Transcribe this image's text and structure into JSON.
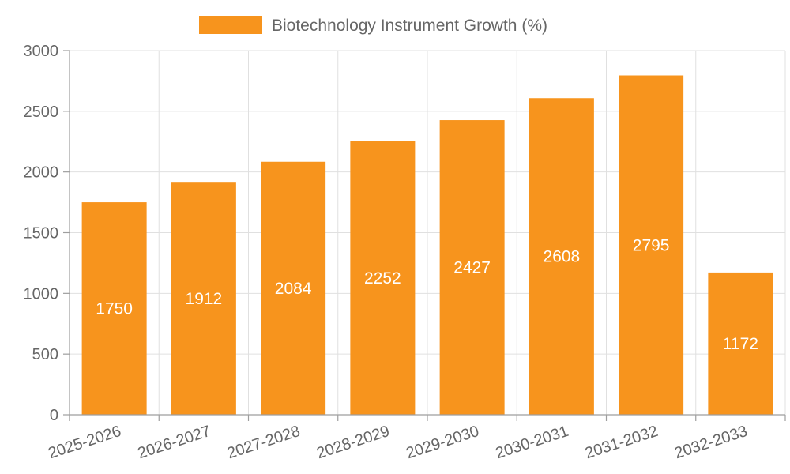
{
  "chart_data": {
    "type": "bar",
    "categories": [
      "2025-2026",
      "2026-2027",
      "2027-2028",
      "2028-2029",
      "2029-2030",
      "2030-2031",
      "2031-2032",
      "2032-2033"
    ],
    "series": [
      {
        "name": "Biotechnology Instrument Growth (%)",
        "values": [
          1750,
          1912,
          2084,
          2252,
          2427,
          2608,
          2795,
          1172
        ],
        "color": "#f7941d"
      }
    ],
    "ylim": [
      0,
      3000
    ],
    "yticks": [
      0,
      500,
      1000,
      1500,
      2000,
      2500,
      3000
    ],
    "grid": true,
    "legend_position": "top-center",
    "data_labels": true
  }
}
